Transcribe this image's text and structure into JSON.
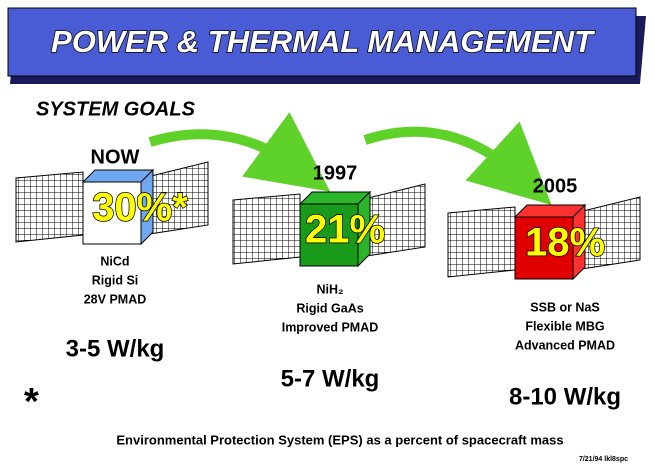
{
  "header": {
    "title": "POWER & THERMAL MANAGEMENT",
    "subtitle": "SYSTEM GOALS"
  },
  "stages": [
    {
      "label": "NOW",
      "percent": "30%*",
      "tech": [
        "NiCd",
        "Rigid Si",
        "28V PMAD"
      ],
      "power": "3-5 W/kg"
    },
    {
      "label": "1997",
      "percent": "21%",
      "tech": [
        "NiH₂",
        "Rigid GaAs",
        "Improved PMAD"
      ],
      "power": "5-7 W/kg"
    },
    {
      "label": "2005",
      "percent": "18%",
      "tech": [
        "SSB or NaS",
        "Flexible MBG",
        "Advanced PMAD"
      ],
      "power": "8-10 W/kg"
    }
  ],
  "footnote": {
    "mark": "*",
    "text": "Environmental Protection System (EPS) as a percent of spacecraft mass",
    "code": "7/21/94 lkl8spc"
  }
}
